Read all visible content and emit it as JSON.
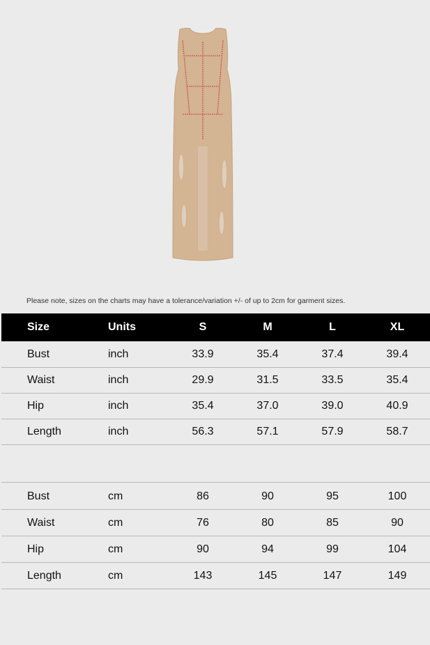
{
  "note": "Please note, sizes on the charts may have a tolerance/variation +/- of up to 2cm for garment sizes.",
  "header": [
    "Size",
    "Units",
    "S",
    "M",
    "L",
    "XL"
  ],
  "inch_rows": [
    [
      "Bust",
      "inch",
      "33.9",
      "35.4",
      "37.4",
      "39.4"
    ],
    [
      "Waist",
      "inch",
      "29.9",
      "31.5",
      "33.5",
      "35.4"
    ],
    [
      "Hip",
      "inch",
      "35.4",
      "37.0",
      "39.0",
      "40.9"
    ],
    [
      "Length",
      "inch",
      "56.3",
      "57.1",
      "57.9",
      "58.7"
    ]
  ],
  "cm_rows": [
    [
      "Bust",
      "cm",
      "86",
      "90",
      "95",
      "100"
    ],
    [
      "Waist",
      "cm",
      "76",
      "80",
      "85",
      "90"
    ],
    [
      "Hip",
      "cm",
      "90",
      "94",
      "99",
      "104"
    ],
    [
      "Length",
      "cm",
      "143",
      "145",
      "147",
      "149"
    ]
  ],
  "colors": {
    "background": "#ebebeb",
    "header_bg": "#000000",
    "dress": "#d3b493",
    "measure_lines": "#d0574a"
  }
}
